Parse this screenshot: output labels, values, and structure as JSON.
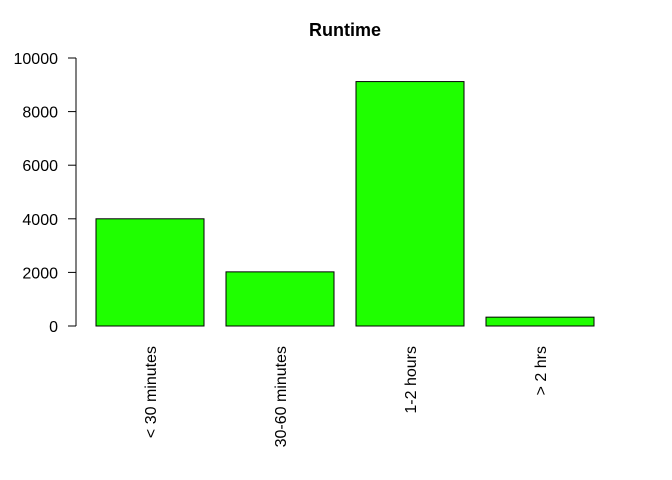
{
  "chart_data": {
    "type": "bar",
    "title": "Runtime",
    "xlabel": "",
    "ylabel": "",
    "categories": [
      "< 30 minutes",
      "30-60 minutes",
      "1-2 hours",
      "> 2 hrs"
    ],
    "values": [
      4000,
      2020,
      9120,
      330
    ],
    "ylim": [
      0,
      10000
    ],
    "yticks": [
      0,
      2000,
      4000,
      6000,
      8000,
      10000
    ],
    "ytick_labels": [
      "0",
      "2000",
      "4000",
      "6000",
      "8000",
      "10000"
    ],
    "bar_color": "#1fff00",
    "bar_outline": "#000000",
    "grid": false,
    "legend": "none"
  }
}
